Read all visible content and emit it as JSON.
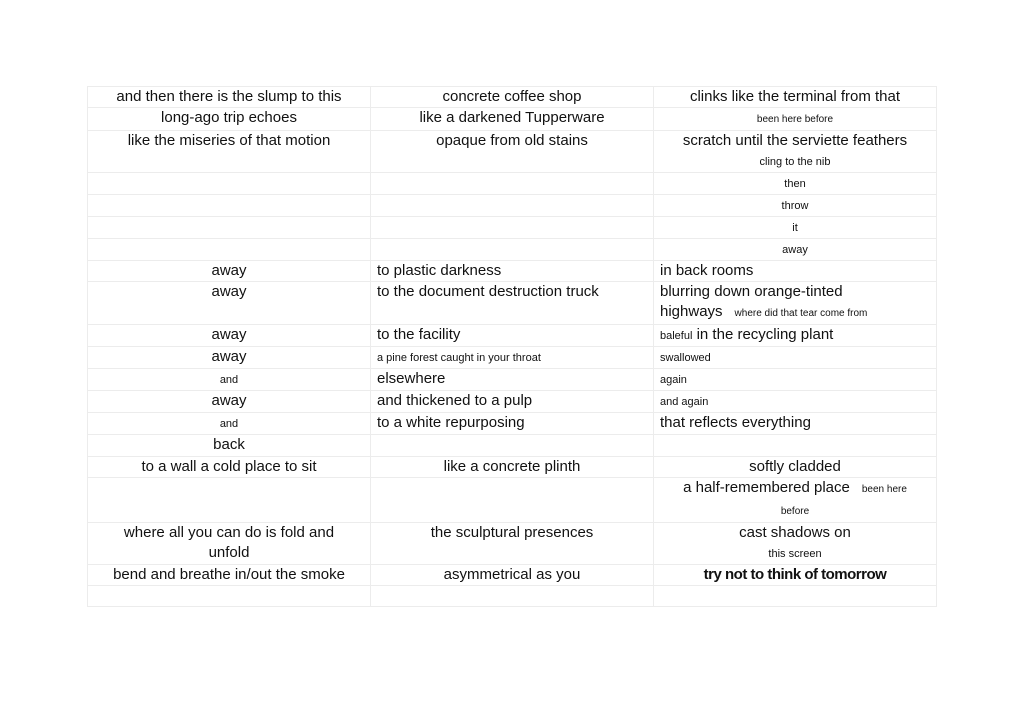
{
  "table": {
    "rows": [
      {
        "h": 21,
        "cells": [
          {
            "a": "c",
            "lines": [
              [
                {
                  "t": "and then there is the slump to this"
                }
              ]
            ]
          },
          {
            "a": "c",
            "lines": [
              [
                {
                  "t": "concrete coffee shop"
                }
              ]
            ]
          },
          {
            "a": "c",
            "lines": [
              [
                {
                  "t": "clinks like the terminal from that"
                }
              ]
            ]
          }
        ]
      },
      {
        "h": 21,
        "cells": [
          {
            "a": "c",
            "lines": [
              [
                {
                  "t": "long-ago trip echoes"
                }
              ]
            ]
          },
          {
            "a": "c",
            "lines": [
              [
                {
                  "t": "like a darkened Tupperware"
                }
              ]
            ]
          },
          {
            "a": "c",
            "lines": [
              [
                {
                  "t": "been here before",
                  "s": "xs"
                }
              ]
            ]
          }
        ]
      },
      {
        "h": 42,
        "cells": [
          {
            "a": "c",
            "lines": [
              [
                {
                  "t": "like the miseries of that motion"
                }
              ]
            ]
          },
          {
            "a": "c",
            "lines": [
              [
                {
                  "t": "opaque from old stains"
                }
              ]
            ]
          },
          {
            "a": "c",
            "lines": [
              [
                {
                  "t": "scratch until the serviette feathers"
                }
              ],
              [
                {
                  "t": "cling to the nib",
                  "s": "sm"
                }
              ]
            ]
          }
        ]
      },
      {
        "h": 21,
        "cells": [
          {
            "a": "c",
            "lines": []
          },
          {
            "a": "c",
            "lines": []
          },
          {
            "a": "c",
            "lines": [
              [
                {
                  "t": "then",
                  "s": "sm"
                }
              ]
            ]
          }
        ]
      },
      {
        "h": 21,
        "cells": [
          {
            "a": "c",
            "lines": []
          },
          {
            "a": "c",
            "lines": []
          },
          {
            "a": "c",
            "lines": [
              [
                {
                  "t": "throw",
                  "s": "sm"
                }
              ]
            ]
          }
        ]
      },
      {
        "h": 21,
        "cells": [
          {
            "a": "c",
            "lines": []
          },
          {
            "a": "c",
            "lines": []
          },
          {
            "a": "c",
            "lines": [
              [
                {
                  "t": "it",
                  "s": "sm"
                }
              ]
            ]
          }
        ]
      },
      {
        "h": 22,
        "cells": [
          {
            "a": "c",
            "lines": []
          },
          {
            "a": "c",
            "lines": []
          },
          {
            "a": "c",
            "lines": [
              [
                {
                  "t": "away",
                  "s": "sm"
                }
              ]
            ]
          }
        ]
      },
      {
        "h": 21,
        "cells": [
          {
            "a": "c",
            "lines": [
              [
                {
                  "t": "away"
                }
              ]
            ]
          },
          {
            "a": "l",
            "lines": [
              [
                {
                  "t": "to plastic darkness"
                }
              ]
            ]
          },
          {
            "a": "l",
            "lines": [
              [
                {
                  "t": "in back rooms"
                }
              ]
            ]
          }
        ]
      },
      {
        "h": 43,
        "cells": [
          {
            "a": "c",
            "lines": [
              [
                {
                  "t": "away"
                }
              ]
            ]
          },
          {
            "a": "l",
            "lines": [
              [
                {
                  "t": "to the document destruction truck"
                }
              ]
            ]
          },
          {
            "a": "l",
            "lines": [
              [
                {
                  "t": "blurring down orange-tinted"
                }
              ],
              [
                {
                  "t": "highways"
                },
                {
                  "gap": true
                },
                {
                  "t": "where did that tear come from",
                  "s": "xs"
                }
              ]
            ]
          }
        ]
      },
      {
        "h": 21,
        "cells": [
          {
            "a": "c",
            "lines": [
              [
                {
                  "t": "away"
                }
              ]
            ]
          },
          {
            "a": "l",
            "lines": [
              [
                {
                  "t": "to the facility"
                }
              ]
            ]
          },
          {
            "a": "l",
            "lines": [
              [
                {
                  "t": "baleful",
                  "s": "sm"
                },
                {
                  "t": " in the recycling plant"
                }
              ]
            ]
          }
        ]
      },
      {
        "h": 21,
        "cells": [
          {
            "a": "c",
            "lines": [
              [
                {
                  "t": "away"
                }
              ]
            ]
          },
          {
            "a": "l",
            "lines": [
              [
                {
                  "t": "a pine forest caught in your throat",
                  "s": "sm"
                }
              ]
            ]
          },
          {
            "a": "l",
            "lines": [
              [
                {
                  "t": "swallowed",
                  "s": "sm"
                }
              ]
            ]
          }
        ]
      },
      {
        "h": 21,
        "cells": [
          {
            "a": "c",
            "lines": [
              [
                {
                  "t": "and",
                  "s": "sm"
                }
              ]
            ]
          },
          {
            "a": "l",
            "lines": [
              [
                {
                  "t": "elsewhere"
                }
              ]
            ]
          },
          {
            "a": "l",
            "lines": [
              [
                {
                  "t": "again",
                  "s": "sm"
                }
              ]
            ]
          }
        ]
      },
      {
        "h": 22,
        "cells": [
          {
            "a": "c",
            "lines": [
              [
                {
                  "t": "away"
                }
              ]
            ]
          },
          {
            "a": "l",
            "lines": [
              [
                {
                  "t": "and thickened to a pulp"
                }
              ]
            ]
          },
          {
            "a": "l",
            "lines": [
              [
                {
                  "t": "and again",
                  "s": "sm"
                }
              ]
            ]
          }
        ]
      },
      {
        "h": 21,
        "cells": [
          {
            "a": "c",
            "lines": [
              [
                {
                  "t": "and",
                  "s": "sm"
                }
              ]
            ]
          },
          {
            "a": "l",
            "lines": [
              [
                {
                  "t": "to a white repurposing"
                }
              ]
            ]
          },
          {
            "a": "l",
            "lines": [
              [
                {
                  "t": "that reflects everything"
                }
              ]
            ]
          }
        ]
      },
      {
        "h": 22,
        "cells": [
          {
            "a": "c",
            "lines": [
              [
                {
                  "t": "back"
                }
              ]
            ]
          },
          {
            "a": "c",
            "lines": []
          },
          {
            "a": "c",
            "lines": []
          }
        ]
      },
      {
        "h": 21,
        "cells": [
          {
            "a": "c",
            "lines": [
              [
                {
                  "t": "to a wall a cold place to sit"
                }
              ]
            ]
          },
          {
            "a": "c",
            "lines": [
              [
                {
                  "t": "like a concrete plinth"
                }
              ]
            ]
          },
          {
            "a": "c",
            "lines": [
              [
                {
                  "t": "softly cladded"
                }
              ]
            ]
          }
        ]
      },
      {
        "h": 37,
        "cells": [
          {
            "a": "c",
            "lines": []
          },
          {
            "a": "c",
            "lines": []
          },
          {
            "a": "c",
            "lines": [
              [
                {
                  "t": "a half-remembered place"
                },
                {
                  "gap": true
                },
                {
                  "t": "been here",
                  "s": "xs"
                }
              ],
              [
                {
                  "t": "before",
                  "s": "xs"
                }
              ]
            ]
          }
        ]
      },
      {
        "h": 42,
        "cells": [
          {
            "a": "c",
            "lines": [
              [
                {
                  "t": "where all you can do is fold and"
                }
              ],
              [
                {
                  "t": "unfold"
                }
              ]
            ]
          },
          {
            "a": "c",
            "lines": [
              [
                {
                  "t": "the sculptural presences"
                }
              ]
            ]
          },
          {
            "a": "c",
            "lines": [
              [
                {
                  "t": "cast shadows on"
                }
              ],
              [
                {
                  "t": "this screen",
                  "s": "sm"
                }
              ]
            ]
          }
        ]
      },
      {
        "h": 21,
        "cells": [
          {
            "a": "c",
            "lines": [
              [
                {
                  "t": "bend and breathe in/out the smoke"
                }
              ]
            ]
          },
          {
            "a": "c",
            "lines": [
              [
                {
                  "t": "asymmetrical as you"
                }
              ]
            ]
          },
          {
            "a": "c",
            "lines": [
              [
                {
                  "t": "try not to think of tomorrow",
                  "s": "b"
                }
              ]
            ]
          }
        ]
      },
      {
        "h": 21,
        "cells": [
          {
            "a": "c",
            "lines": []
          },
          {
            "a": "c",
            "lines": []
          },
          {
            "a": "c",
            "lines": []
          }
        ]
      }
    ]
  }
}
